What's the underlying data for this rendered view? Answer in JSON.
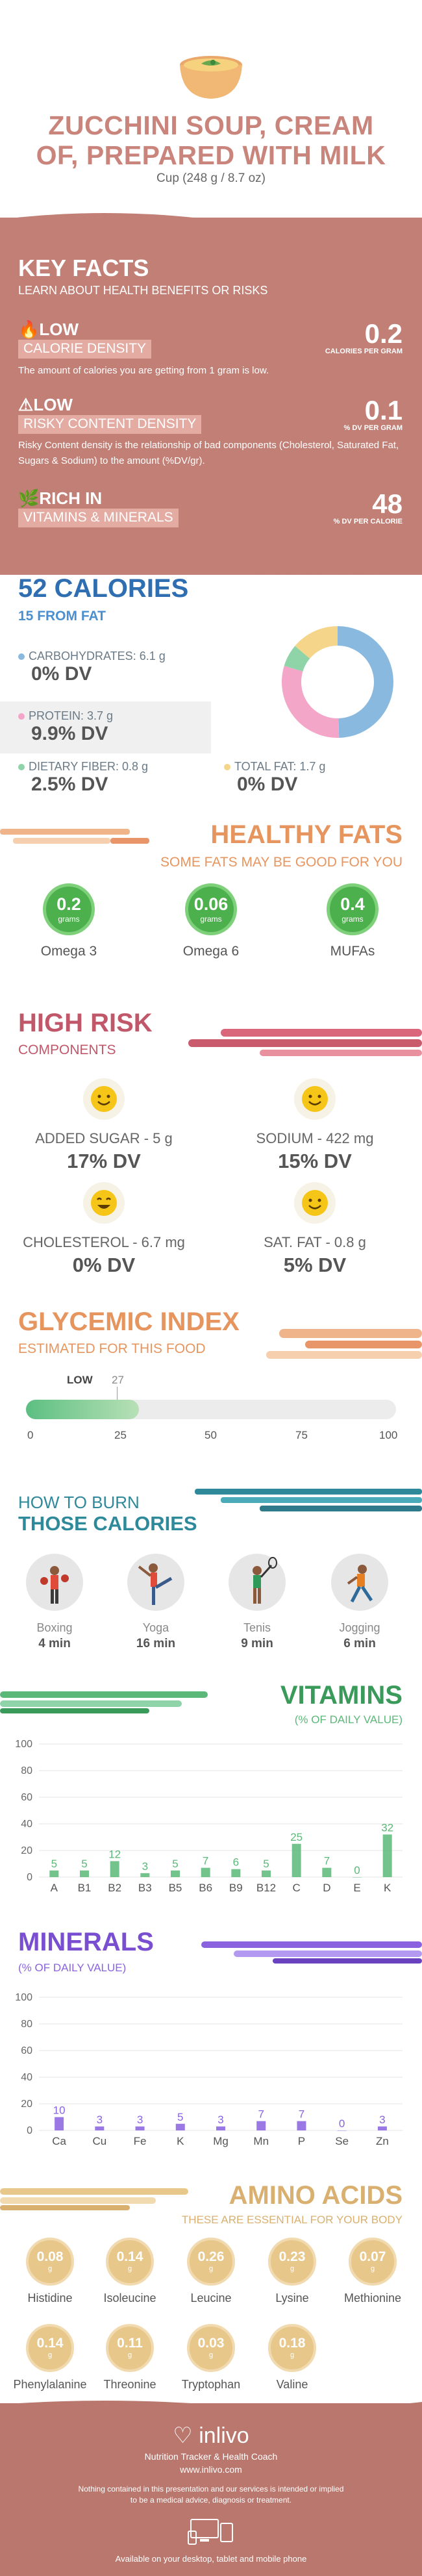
{
  "header": {
    "title_line1": "ZUCCHINI SOUP, CREAM",
    "title_line2": "OF, PREPARED WITH MILK",
    "serving": "Cup (248 g / 8.7 oz)"
  },
  "key_facts": {
    "title": "KEY FACTS",
    "subtitle": "LEARN ABOUT HEALTH BENEFITS OR RISKS",
    "items": [
      {
        "level": "LOW",
        "name": "CALORIE DENSITY",
        "desc": "The amount of calories you are getting from 1 gram is low.",
        "value": "0.2",
        "unit": "CALORIES PER GRAM"
      },
      {
        "level": "LOW",
        "name": "RISKY CONTENT DENSITY",
        "desc": "Risky Content density is the relationship of bad components (Cholesterol, Saturated Fat, Sugars & Sodium) to the amount (%DV/gr).",
        "value": "0.1",
        "unit": "% DV PER GRAM"
      },
      {
        "level": "RICH IN",
        "name": "VITAMINS & MINERALS",
        "desc": "",
        "value": "48",
        "unit": "% DV PER CALORIE"
      }
    ]
  },
  "calories": {
    "title": "52 CALORIES",
    "subtitle": "15 FROM FAT",
    "carbs_label": "CARBOHYDRATES: 6.1 g",
    "carbs_dv": "0% DV",
    "protein_label": "PROTEIN: 3.7 g",
    "protein_dv": "9.9% DV",
    "fiber_label": "DIETARY FIBER: 0.8 g",
    "fiber_dv": "2.5% DV",
    "fat_label": "TOTAL FAT: 1.7 g",
    "fat_dv": "0% DV",
    "colors": {
      "carbs": "#8ab9e0",
      "protein": "#f4a6c8",
      "fiber": "#8fd3a8",
      "fat": "#f5d58a"
    },
    "donut": [
      {
        "name": "carbs",
        "value": 6.1
      },
      {
        "name": "protein",
        "value": 3.7
      },
      {
        "name": "fiber",
        "value": 0.8
      },
      {
        "name": "fat",
        "value": 1.7
      }
    ]
  },
  "healthy_fats": {
    "title": "HEALTHY FATS",
    "subtitle": "SOME FATS MAY BE GOOD FOR YOU",
    "items": [
      {
        "value": "0.2",
        "unit": "grams",
        "name": "Omega 3"
      },
      {
        "value": "0.06",
        "unit": "grams",
        "name": "Omega 6"
      },
      {
        "value": "0.4",
        "unit": "grams",
        "name": "MUFAs"
      }
    ]
  },
  "high_risk": {
    "title": "HIGH RISK",
    "subtitle": "COMPONENTS",
    "items": [
      {
        "label": "ADDED SUGAR - 5 g",
        "dv": "17% DV"
      },
      {
        "label": "SODIUM - 422 mg",
        "dv": "15% DV"
      },
      {
        "label": "CHOLESTEROL - 6.7 mg",
        "dv": "0% DV"
      },
      {
        "label": "SAT. FAT - 0.8 g",
        "dv": "5% DV"
      }
    ]
  },
  "glycemic": {
    "title": "GLYCEMIC INDEX",
    "subtitle": "ESTIMATED FOR THIS FOOD",
    "level": "LOW",
    "value": "27",
    "fraction": 0.27,
    "ticks": [
      "0",
      "25",
      "50",
      "75",
      "100"
    ]
  },
  "burn": {
    "title1": "HOW TO BURN",
    "title2": "THOSE CALORIES",
    "items": [
      {
        "name": "Boxing",
        "min": "4 min"
      },
      {
        "name": "Yoga",
        "min": "16 min"
      },
      {
        "name": "Tenis",
        "min": "9 min"
      },
      {
        "name": "Jogging",
        "min": "6 min"
      }
    ]
  },
  "vitamins": {
    "title": "VITAMINS",
    "subtitle": "(% OF DAILY VALUE)",
    "color": "#5bb878"
  },
  "minerals": {
    "title": "MINERALS",
    "subtitle": "(% OF DAILY VALUE)",
    "color": "#8a62e0"
  },
  "chart_data": [
    {
      "type": "bar",
      "title": "VITAMINS",
      "categories": [
        "A",
        "B1",
        "B2",
        "B3",
        "B5",
        "B6",
        "B9",
        "B12",
        "C",
        "D",
        "E",
        "K"
      ],
      "values": [
        5,
        5,
        12,
        3,
        5,
        7,
        6,
        5,
        25,
        7,
        0,
        32
      ],
      "yticks": [
        "0",
        "20",
        "40",
        "60",
        "80",
        "100"
      ],
      "ylim": [
        0,
        100
      ]
    },
    {
      "type": "bar",
      "title": "MINERALS",
      "categories": [
        "Ca",
        "Cu",
        "Fe",
        "K",
        "Mg",
        "Mn",
        "P",
        "Se",
        "Zn"
      ],
      "values": [
        10,
        3,
        3,
        5,
        3,
        7,
        7,
        0,
        3
      ],
      "yticks": [
        "0",
        "20",
        "40",
        "60",
        "80",
        "100"
      ],
      "ylim": [
        0,
        100
      ]
    }
  ],
  "amino": {
    "title": "AMINO ACIDS",
    "subtitle": "THESE ARE ESSENTIAL FOR YOUR BODY",
    "items": [
      {
        "value": "0.08",
        "unit": "g",
        "name": "Histidine"
      },
      {
        "value": "0.14",
        "unit": "g",
        "name": "Isoleucine"
      },
      {
        "value": "0.26",
        "unit": "g",
        "name": "Leucine"
      },
      {
        "value": "0.23",
        "unit": "g",
        "name": "Lysine"
      },
      {
        "value": "0.07",
        "unit": "g",
        "name": "Methionine"
      },
      {
        "value": "0.14",
        "unit": "g",
        "name": "Phenylalanine"
      },
      {
        "value": "0.11",
        "unit": "g",
        "name": "Threonine"
      },
      {
        "value": "0.03",
        "unit": "g",
        "name": "Tryptophan"
      },
      {
        "value": "0.18",
        "unit": "g",
        "name": "Valine"
      }
    ]
  },
  "footer": {
    "brand": "inlivo",
    "tagline": "Nutrition Tracker & Health Coach",
    "url": "www.inlivo.com",
    "disclaimer1": "Nothing contained in this presentation and our services is intended or implied",
    "disclaimer2": "to be a medical advice, diagnosis or treatment.",
    "available": "Available on your desktop, tablet and mobile phone"
  }
}
